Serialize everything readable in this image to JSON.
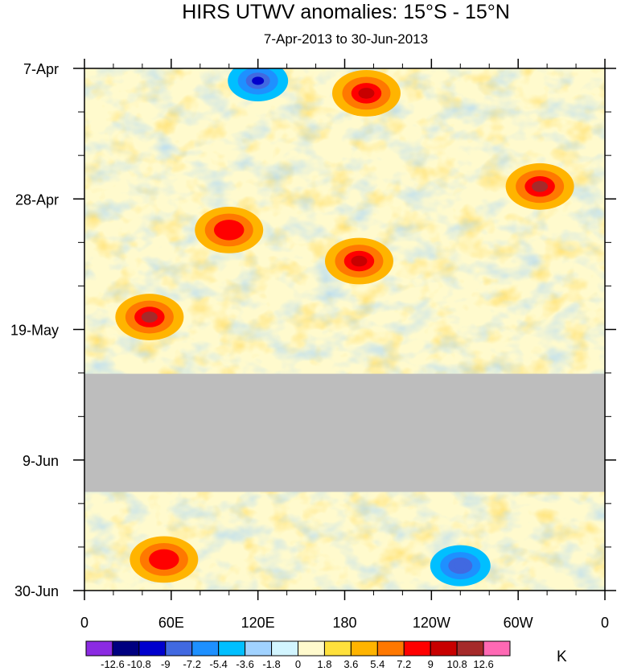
{
  "chart_data": {
    "type": "heatmap",
    "title": "HIRS UTWV anomalies: 15°S - 15°N",
    "subtitle": "7-Apr-2013 to 30-Jun-2013",
    "x_tick_labels": [
      "0",
      "60E",
      "120E",
      "180",
      "120W",
      "60W",
      "0"
    ],
    "x_tick_values_deg": [
      0,
      60,
      120,
      180,
      240,
      300,
      360
    ],
    "y_tick_labels": [
      "7-Apr",
      "28-Apr",
      "19-May",
      "9-Jun",
      "30-Jun"
    ],
    "y_tick_values_day": [
      0,
      21,
      42,
      63,
      84
    ],
    "xlim": [
      0,
      360
    ],
    "ylim_days": [
      0,
      84
    ],
    "missing_data": {
      "from_day": 49,
      "to_day": 68,
      "fill": "#bdbdbd"
    },
    "colorbar": {
      "unit": "K",
      "levels": [
        "-12.6",
        "-10.8",
        "-9",
        "-7.2",
        "-5.4",
        "-3.6",
        "-1.8",
        "0",
        "1.8",
        "3.6",
        "5.4",
        "7.2",
        "9",
        "10.8",
        "12.6"
      ],
      "colors": [
        "#8b2be2",
        "#000080",
        "#0000cd",
        "#4169e1",
        "#1e90ff",
        "#00bfff",
        "#a0d2ff",
        "#d2f5ff",
        "#fffacd",
        "#ffe13c",
        "#ffb400",
        "#ff7800",
        "#ff0000",
        "#c80000",
        "#a52a2a",
        "#ff69b4"
      ]
    },
    "features": [
      {
        "lon": 195,
        "day": 4,
        "value": 9
      },
      {
        "lon": 120,
        "day": 2,
        "value": -10.8
      },
      {
        "lon": 315,
        "day": 19,
        "value": 10.8
      },
      {
        "lon": 190,
        "day": 31,
        "value": 9
      },
      {
        "lon": 45,
        "day": 40,
        "value": 10.8
      },
      {
        "lon": 100,
        "day": 26,
        "value": 7.2
      },
      {
        "lon": 55,
        "day": 79,
        "value": 7.2
      },
      {
        "lon": 260,
        "day": 80,
        "value": -9
      }
    ]
  }
}
